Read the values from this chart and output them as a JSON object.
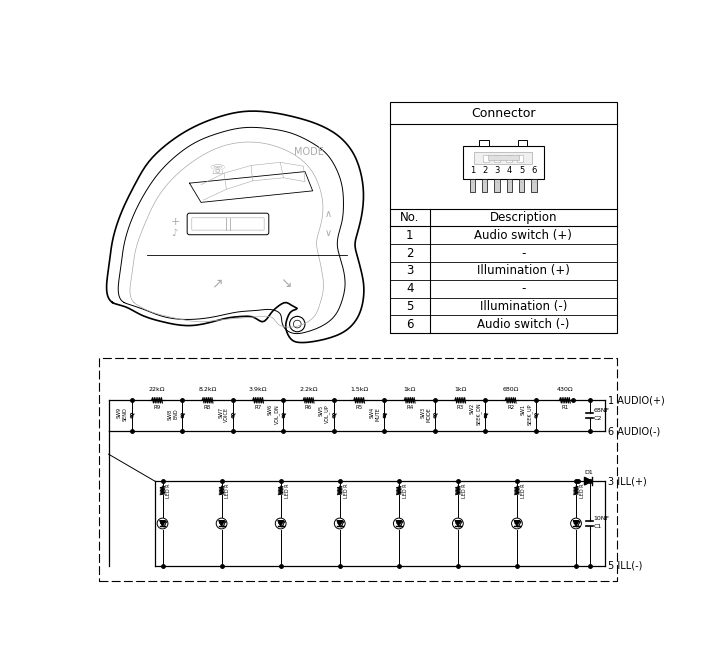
{
  "bg_color": "#ffffff",
  "line_color": "#000000",
  "gray_color": "#aaaaaa",
  "table_header": "Connector",
  "table_descriptions": [
    "Audio switch (+)",
    "-",
    "Illumination (+)",
    "-",
    "Illumination (-)",
    "Audio switch (-)"
  ],
  "resistors_top": [
    "22kΩ",
    "8.2kΩ",
    "3.9kΩ",
    "2.2kΩ",
    "1.5kΩ",
    "1kΩ",
    "1kΩ",
    "680Ω",
    "430Ω"
  ],
  "resistors_refs": [
    "R9",
    "R8",
    "R7",
    "R6",
    "R5",
    "R4",
    "R3",
    "R2",
    "R1"
  ],
  "switches": [
    "SW9\nSEND",
    "SW8\nEND",
    "SW7\nVOICE",
    "SW6\nVOL_DN",
    "SW5\nVOL_UP",
    "SW4\nMUTE",
    "SW3\nMODE",
    "SW2\nSEEK_DN",
    "SW1\nSEEK_UP"
  ],
  "cap_top_val": "68NF",
  "cap_top_ref": "C2",
  "cap_bot_val": "10NF",
  "cap_bot_ref": "C1",
  "diode_ref": "D1",
  "audio_plus": "1 AUDIO(+)",
  "audio_minus": "6 AUDIO(-)",
  "ill_plus": "3 ILL(+)",
  "ill_minus": "5 ILL(-)",
  "num_leds": 8,
  "connector_pins": [
    "1",
    "2",
    "3",
    "4",
    "5",
    "6"
  ]
}
